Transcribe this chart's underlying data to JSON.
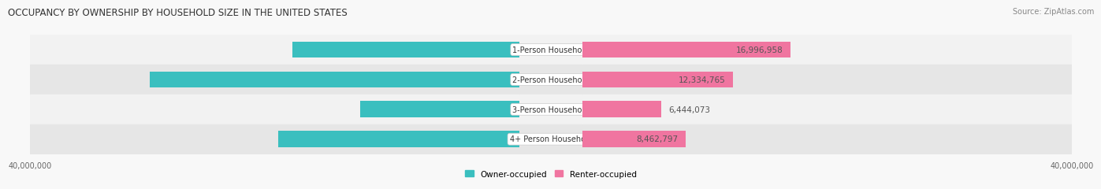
{
  "title": "OCCUPANCY BY OWNERSHIP BY HOUSEHOLD SIZE IN THE UNITED STATES",
  "source": "Source: ZipAtlas.com",
  "categories": [
    "1-Person Household",
    "2-Person Household",
    "3-Person Household",
    "4+ Person Household"
  ],
  "owner_values": [
    18553274,
    30223641,
    13007035,
    19713810
  ],
  "renter_values": [
    16996958,
    12334765,
    6444073,
    8462797
  ],
  "owner_color": "#3abfbf",
  "renter_color": "#f075a0",
  "row_colors": [
    "#f2f2f2",
    "#e6e6e6",
    "#f2f2f2",
    "#e6e6e6"
  ],
  "axis_max": 40000000,
  "label_fontsize": 7.5,
  "title_fontsize": 8.5,
  "source_fontsize": 7,
  "tick_fontsize": 7,
  "bar_height": 0.55,
  "background_color": "#f8f8f8",
  "value_color_inside": "#ffffff",
  "value_color_outside": "#555555"
}
